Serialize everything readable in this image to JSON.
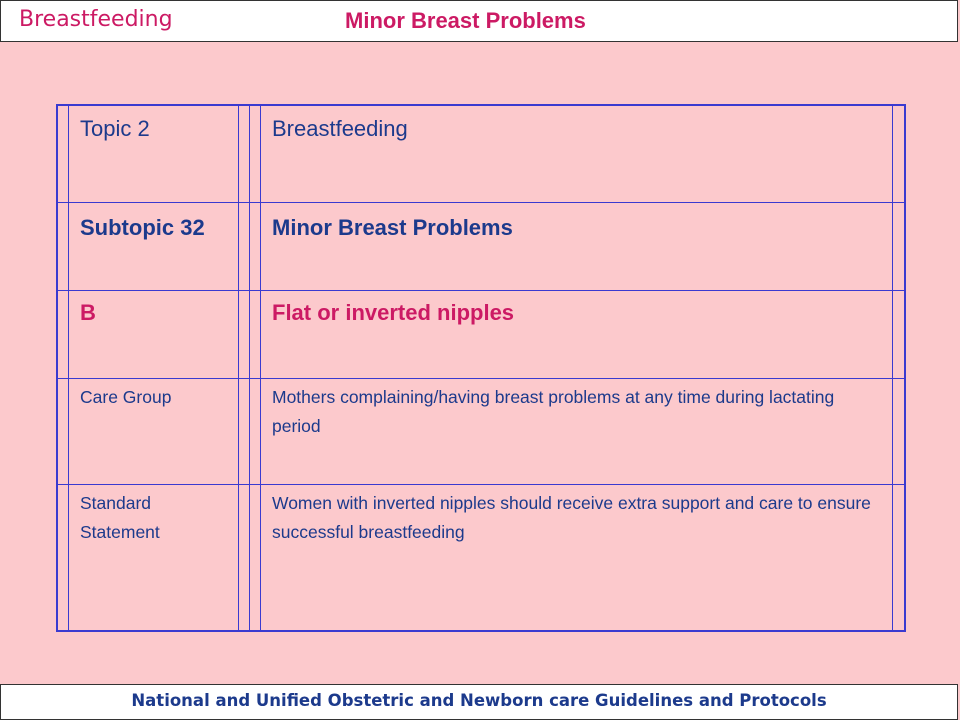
{
  "header": {
    "left_title": "Breastfeeding",
    "right_title": "Minor Breast Problems"
  },
  "table": {
    "rows": [
      {
        "label": "Topic 2",
        "value": "Breastfeeding"
      },
      {
        "label": "Subtopic 32",
        "value": "Minor Breast Problems"
      },
      {
        "label": "B",
        "value": "Flat or inverted nipples"
      },
      {
        "label": "Care Group",
        "value": "Mothers complaining/having breast problems at any time during lactating period"
      },
      {
        "label": "Standard Statement",
        "value_lines": [
          "Women with inverted nipples should receive extra support and care to ensure",
          "successful breastfeeding"
        ]
      }
    ]
  },
  "footer": {
    "text": "National and Unified Obstetric and Newborn care Guidelines and Protocols"
  },
  "colors": {
    "background": "#fcc9cc",
    "accent_pink": "#cc1a64",
    "text_blue": "#1c3a8c",
    "border_blue": "#3a3ad0"
  }
}
